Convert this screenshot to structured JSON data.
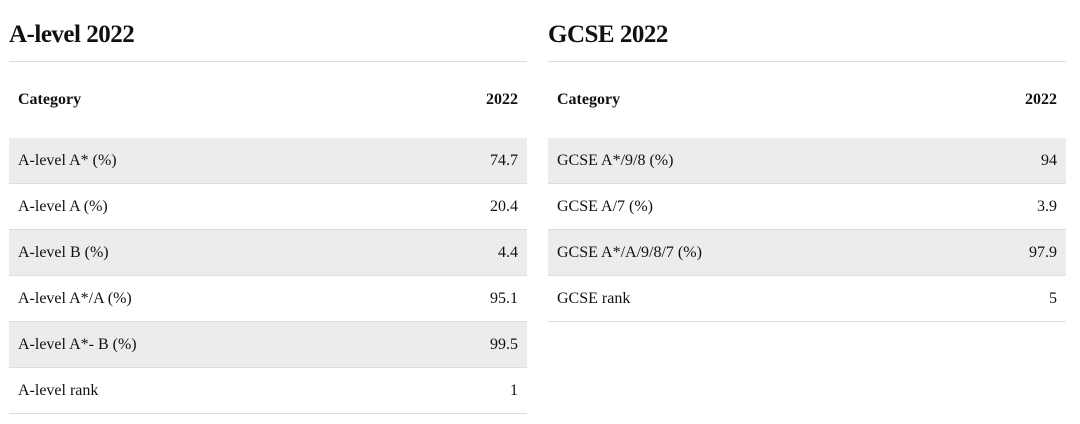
{
  "alevel": {
    "title": "A-level 2022",
    "header": {
      "category": "Category",
      "year": "2022"
    },
    "rows": [
      {
        "category": "A-level A* (%)",
        "value": "74.7"
      },
      {
        "category": "A-level A (%)",
        "value": "20.4"
      },
      {
        "category": "A-level B (%)",
        "value": "4.4"
      },
      {
        "category": "A-level A*/A (%)",
        "value": "95.1"
      },
      {
        "category": "A-level A*- B (%)",
        "value": "99.5"
      },
      {
        "category": "A-level rank",
        "value": "1"
      }
    ]
  },
  "gcse": {
    "title": "GCSE 2022",
    "header": {
      "category": "Category",
      "year": "2022"
    },
    "rows": [
      {
        "category": "GCSE A*/9/8 (%)",
        "value": "94"
      },
      {
        "category": "GCSE A/7 (%)",
        "value": "3.9"
      },
      {
        "category": "GCSE A*/A/9/8/7 (%)",
        "value": "97.9"
      },
      {
        "category": "GCSE rank",
        "value": "5"
      }
    ]
  }
}
